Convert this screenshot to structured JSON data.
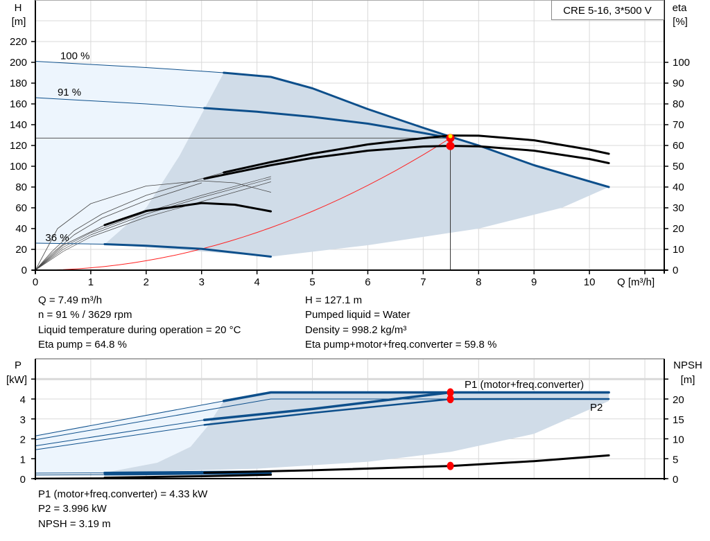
{
  "legend_box": "CRE 5-16, 3*500 V",
  "colors": {
    "curve_blue": "#0d4f8b",
    "region_grey": "#d0dce8",
    "region_light": "#edf5fd",
    "system_curve": "#ff2020",
    "duty_point": "#ff0000",
    "duty_inner": "#ffee00",
    "grid": "#d9d9d9"
  },
  "chart_data": [
    {
      "type": "line",
      "title": "",
      "xlabel": "Q [m³/h]",
      "ylabel_left": "H",
      "ylabel_left_unit": "[m]",
      "ylabel_right": "eta",
      "ylabel_right_unit": "[%]",
      "xlim": [
        0,
        11.35
      ],
      "ylim_left": [
        0,
        260
      ],
      "ylim_right": [
        0,
        100
      ],
      "xticks": [
        "0",
        "1",
        "2",
        "3",
        "4",
        "5",
        "6",
        "7",
        "8",
        "9",
        "10"
      ],
      "yticks_left": [
        "0",
        "20",
        "40",
        "60",
        "80",
        "100",
        "120",
        "140",
        "160",
        "180",
        "200",
        "220"
      ],
      "yticks_right": [
        "0",
        "10",
        "20",
        "30",
        "40",
        "50",
        "60",
        "70",
        "80",
        "90",
        "100"
      ],
      "grid": true,
      "speed_labels": [
        {
          "text": "100 %",
          "q": 0.45,
          "h": 203
        },
        {
          "text": "91 %",
          "q": 0.4,
          "h": 168
        },
        {
          "text": "36 %",
          "q": 0.18,
          "h": 28
        }
      ],
      "series": [
        {
          "kind": "H",
          "speed": 100,
          "thin": [
            [
              0,
              201
            ],
            [
              1,
              198
            ],
            [
              2,
              195
            ],
            [
              3,
              191.5
            ],
            [
              3.4,
              190
            ]
          ],
          "thick": [
            [
              3.4,
              190
            ],
            [
              4.25,
              186
            ],
            [
              5,
              175
            ],
            [
              6,
              155
            ],
            [
              7,
              137
            ],
            [
              7.49,
              128.5
            ],
            [
              8,
              120
            ],
            [
              9,
              101
            ],
            [
              10.35,
              80
            ]
          ]
        },
        {
          "kind": "H",
          "speed": 91,
          "thin": [
            [
              0,
              166
            ],
            [
              1,
              163
            ],
            [
              2,
              160
            ],
            [
              3.05,
              156
            ]
          ],
          "thick": [
            [
              3.05,
              156
            ],
            [
              4,
              152.5
            ],
            [
              5,
              147.5
            ],
            [
              6,
              141
            ],
            [
              7,
              132
            ],
            [
              7.49,
              127.1
            ]
          ]
        },
        {
          "kind": "H",
          "speed": 36,
          "thin": [
            [
              0,
              26
            ],
            [
              1.25,
              25
            ]
          ],
          "thick": [
            [
              1.25,
              25
            ],
            [
              2,
              23.5
            ],
            [
              3,
              20.5
            ],
            [
              4.25,
              13
            ]
          ]
        },
        {
          "kind": "eta_pump",
          "speed": 91,
          "thin": [
            [
              0,
              0
            ],
            [
              0.3,
              9
            ],
            [
              0.7,
              19
            ],
            [
              1.2,
              27
            ],
            [
              2,
              36
            ],
            [
              3,
              44
            ],
            [
              3.4,
              47
            ]
          ],
          "thick": [
            [
              3.4,
              47
            ],
            [
              4.25,
              52
            ],
            [
              5,
              56
            ],
            [
              6,
              60.5
            ],
            [
              7,
              63.5
            ],
            [
              7.49,
              64.8
            ],
            [
              8,
              64.7
            ],
            [
              9,
              62.5
            ],
            [
              10,
              58
            ],
            [
              10.35,
              56
            ]
          ]
        },
        {
          "kind": "eta_total",
          "speed": 91,
          "thin": [
            [
              0,
              0
            ],
            [
              0.3,
              8
            ],
            [
              0.7,
              17
            ],
            [
              1.2,
              25
            ],
            [
              2,
              33.5
            ],
            [
              3,
              42
            ]
          ],
          "thick": [
            [
              3.05,
              44
            ],
            [
              4.25,
              50.5
            ],
            [
              5,
              54
            ],
            [
              6,
              57.5
            ],
            [
              7,
              59.5
            ],
            [
              7.49,
              59.8
            ],
            [
              8,
              59.6
            ],
            [
              9,
              57.5
            ],
            [
              10,
              53.5
            ],
            [
              10.35,
              51.5
            ]
          ]
        },
        {
          "kind": "eta_pump",
          "speed": 36,
          "thin": [
            [
              0,
              0
            ],
            [
              0.4,
              20
            ],
            [
              1,
              32
            ],
            [
              2,
              40.5
            ],
            [
              3,
              43
            ],
            [
              3.6,
              42
            ],
            [
              4.25,
              37.5
            ]
          ],
          "thick": []
        },
        {
          "kind": "eta_total",
          "speed": 36,
          "thin": [
            [
              0,
              0
            ],
            [
              0.5,
              12
            ],
            [
              1.25,
              21.7
            ]
          ],
          "thick": [
            [
              1.25,
              21.7
            ],
            [
              2,
              28.5
            ],
            [
              3,
              32.3
            ],
            [
              3.6,
              31.5
            ],
            [
              4.25,
              28.3
            ]
          ]
        }
      ],
      "extra_thin_eta": [
        [
          [
            0,
            0
          ],
          [
            0.5,
            11
          ],
          [
            1,
            18
          ],
          [
            2,
            28
          ],
          [
            3,
            36
          ],
          [
            4.25,
            45
          ]
        ],
        [
          [
            0,
            0
          ],
          [
            0.5,
            10
          ],
          [
            1,
            17
          ],
          [
            2,
            27
          ],
          [
            3,
            35
          ],
          [
            4.25,
            44
          ]
        ],
        [
          [
            0,
            0
          ],
          [
            0.5,
            9
          ],
          [
            1,
            16
          ],
          [
            2,
            25.5
          ],
          [
            3,
            33
          ],
          [
            4.25,
            42.5
          ]
        ]
      ],
      "system_curve_k": 2.266,
      "duty_point": {
        "Q": 7.49,
        "H": 127.1,
        "eta_pump": 64.8,
        "eta_total": 59.8
      },
      "region_bottom": [
        [
          1.25,
          25
        ],
        [
          4.25,
          13
        ],
        [
          6,
          24
        ],
        [
          8,
          40
        ],
        [
          9.5,
          60
        ],
        [
          10.35,
          80
        ]
      ],
      "region_left": [
        [
          1.25,
          25
        ],
        [
          2,
          60
        ],
        [
          2.6,
          110
        ],
        [
          3,
          150
        ],
        [
          3.4,
          190
        ]
      ]
    },
    {
      "type": "line",
      "title": "",
      "ylabel_left": "P",
      "ylabel_left_unit": "[kW]",
      "ylabel_right": "NPSH",
      "ylabel_right_unit": "[m]",
      "xlim": [
        0,
        11.35
      ],
      "ylim_left": [
        0,
        6
      ],
      "ylim_right": [
        0,
        30
      ],
      "yticks_left": [
        "0",
        "1",
        "2",
        "3",
        "4"
      ],
      "yticks_right": [
        "0",
        "5",
        "10",
        "15",
        "20"
      ],
      "grid": true,
      "series_labels": {
        "p1": "P1 (motor+freq.converter)",
        "p2": "P2"
      },
      "series": [
        {
          "kind": "P1",
          "speed": 100,
          "thin": [
            [
              0,
              2.15
            ],
            [
              3.4,
              3.9
            ]
          ],
          "thick": [
            [
              3.4,
              3.9
            ],
            [
              4.25,
              4.33
            ],
            [
              10.35,
              4.33
            ]
          ]
        },
        {
          "kind": "P2",
          "speed": 100,
          "thin": [
            [
              0,
              1.95
            ],
            [
              4.25,
              4.0
            ],
            [
              10.35,
              4.0
            ]
          ],
          "thick": [
            [
              7.49,
              3.996
            ],
            [
              10.35,
              4.0
            ]
          ]
        },
        {
          "kind": "P1",
          "speed": 91,
          "thin": [
            [
              0,
              1.65
            ],
            [
              3.05,
              2.95
            ]
          ],
          "thick": [
            [
              3.05,
              2.95
            ],
            [
              5,
              3.5
            ],
            [
              7.49,
              4.33
            ]
          ]
        },
        {
          "kind": "P2",
          "speed": 91,
          "thin": [
            [
              0,
              1.45
            ],
            [
              3.05,
              2.7
            ]
          ],
          "thick": [
            [
              3.05,
              2.7
            ],
            [
              5,
              3.3
            ],
            [
              7.49,
              3.996
            ]
          ]
        },
        {
          "kind": "P1",
          "speed": 36,
          "thin": [
            [
              0,
              0.28
            ],
            [
              1.25,
              0.29
            ]
          ],
          "thick": [
            [
              1.25,
              0.29
            ],
            [
              4.25,
              0.35
            ]
          ]
        },
        {
          "kind": "P2",
          "speed": 36,
          "thin": [
            [
              0,
              0.18
            ],
            [
              1.25,
              0.2
            ]
          ],
          "thick": [
            [
              1.25,
              0.2
            ],
            [
              4.25,
              0.27
            ]
          ]
        }
      ],
      "npsh_curves": [
        {
          "thin": [],
          "thick": [
            [
              3.05,
              1.5
            ],
            [
              5,
              2.1
            ],
            [
              7.49,
              3.19
            ],
            [
              9,
              4.4
            ],
            [
              10.35,
              5.85
            ]
          ]
        },
        {
          "thin": [
            [
              0,
              0.15
            ],
            [
              1.25,
              0.25
            ]
          ],
          "thick": [
            [
              1.25,
              0.25
            ],
            [
              3,
              0.6
            ],
            [
              4.25,
              1.0
            ]
          ]
        }
      ],
      "duty_point": {
        "P1": 4.33,
        "P2": 3.996,
        "NPSH": 3.19,
        "Q": 7.49
      },
      "region_bottom": [
        [
          1.25,
          0.3
        ],
        [
          4,
          0.5
        ],
        [
          6,
          0.85
        ],
        [
          7.5,
          1.35
        ],
        [
          9,
          2.25
        ],
        [
          10.35,
          3.9
        ]
      ],
      "region_left": [
        [
          1.25,
          0.3
        ],
        [
          2.2,
          0.8
        ],
        [
          2.8,
          1.6
        ],
        [
          3.1,
          2.6
        ],
        [
          3.4,
          3.9
        ]
      ]
    }
  ],
  "readout_top": {
    "left": [
      "Q = 7.49 m³/h",
      "n = 91 % / 3629 rpm",
      "Liquid temperature during operation = 20 °C",
      "Eta pump = 64.8 %"
    ],
    "right": [
      "H = 127.1 m",
      "Pumped liquid = Water",
      "Density = 998.2 kg/m³",
      "Eta pump+motor+freq.converter = 59.8 %"
    ]
  },
  "readout_bottom": [
    "P1 (motor+freq.converter) = 4.33 kW",
    "P2 = 3.996 kW",
    "NPSH = 3.19 m"
  ]
}
